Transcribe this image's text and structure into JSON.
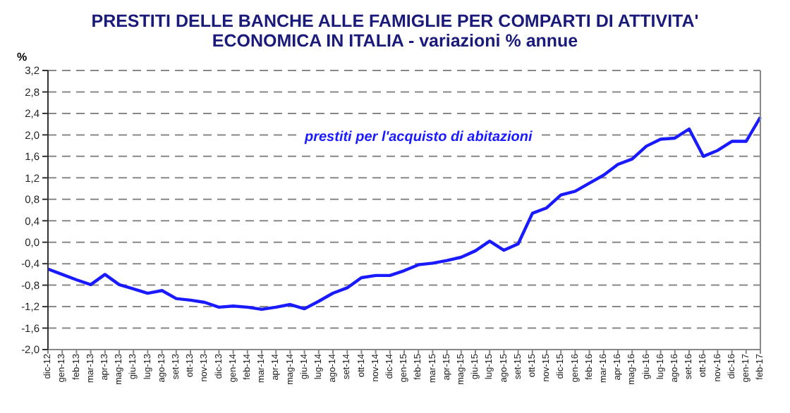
{
  "chart_data": {
    "type": "line",
    "title": "PRESTITI DELLE BANCHE ALLE FAMIGLIE PER COMPARTI DI ATTIVITA' ECONOMICA IN ITALIA - variazioni % annue",
    "ylabel": "%",
    "annotations": [
      "prestiti per l'acquisto di abitazioni"
    ],
    "categories": [
      "dic-12",
      "gen-13",
      "feb-13",
      "mar-13",
      "apr-13",
      "mag-13",
      "giu-13",
      "lug-13",
      "ago-13",
      "set-13",
      "ott-13",
      "nov-13",
      "dic-13",
      "gen-14",
      "feb-14",
      "mar-14",
      "apr-14",
      "mag-14",
      "giu-14",
      "lug-14",
      "ago-14",
      "set-14",
      "ott-14",
      "nov-14",
      "dic-14",
      "gen-15",
      "feb-15",
      "mar-15",
      "apr-15",
      "mag-15",
      "giu-15",
      "lug-15",
      "ago-15",
      "set-15",
      "ott-15",
      "nov-15",
      "dic-15",
      "gen-16",
      "feb-16",
      "mar-16",
      "apr-16",
      "mag-16",
      "giu-16",
      "lug-16",
      "ago-16",
      "set-16",
      "ott-16",
      "nov-16",
      "dic-16",
      "gen-17",
      "feb-17"
    ],
    "series": [
      {
        "color": "#1a1aff",
        "values": [
          -0.5,
          -0.6,
          -0.7,
          -0.79,
          -0.6,
          -0.79,
          -0.87,
          -0.95,
          -0.9,
          -1.05,
          -1.08,
          -1.12,
          -1.21,
          -1.19,
          -1.21,
          -1.25,
          -1.21,
          -1.16,
          -1.24,
          -1.1,
          -0.95,
          -0.85,
          -0.66,
          -0.62,
          -0.62,
          -0.53,
          -0.42,
          -0.39,
          -0.34,
          -0.28,
          -0.16,
          0.02,
          -0.15,
          -0.03,
          0.54,
          0.64,
          0.88,
          0.95,
          1.1,
          1.25,
          1.45,
          1.55,
          1.79,
          1.92,
          1.94,
          2.11,
          1.6,
          1.71,
          1.88,
          1.88,
          2.33
        ]
      }
    ],
    "ylim": [
      -2.0,
      3.2
    ],
    "yticks": [
      {
        "value": -2.0,
        "label": "-2,0"
      },
      {
        "value": -1.6,
        "label": "-1,6"
      },
      {
        "value": -1.2,
        "label": "-1,2"
      },
      {
        "value": -0.8,
        "label": "-0,8"
      },
      {
        "value": -0.4,
        "label": "-0,4"
      },
      {
        "value": 0,
        "label": "0,0"
      },
      {
        "value": 0.4,
        "label": "0,4"
      },
      {
        "value": 0.8,
        "label": "0,8"
      },
      {
        "value": 1.2,
        "label": "1,2"
      },
      {
        "value": 1.6,
        "label": "1,6"
      },
      {
        "value": 2.0,
        "label": "2,0"
      },
      {
        "value": 2.4,
        "label": "2,4"
      },
      {
        "value": 2.8,
        "label": "2,8"
      },
      {
        "value": 3.2,
        "label": "3,2"
      }
    ],
    "grid": "y",
    "marker": "none",
    "line_style": "solid"
  }
}
